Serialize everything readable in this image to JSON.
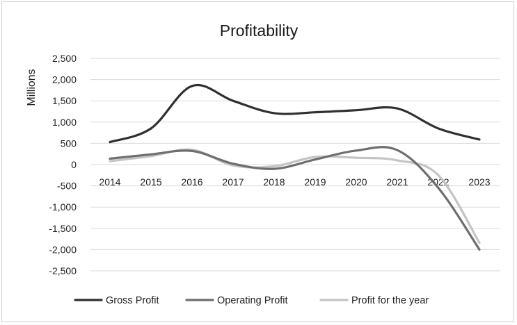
{
  "chart_data": {
    "type": "line",
    "title": "Profitability",
    "xlabel": "",
    "ylabel": "Millions",
    "categories": [
      "2014",
      "2015",
      "2016",
      "2017",
      "2018",
      "2019",
      "2020",
      "2021",
      "2022",
      "2023"
    ],
    "ylim": [
      -2500,
      2500
    ],
    "yticks": [
      2500,
      2000,
      1500,
      1000,
      500,
      0,
      -500,
      -1000,
      -1500,
      -2000,
      -2500
    ],
    "ytick_labels": [
      "2,500",
      "2,000",
      "1,500",
      "1,000",
      "500",
      "0",
      "-500",
      "-1,000",
      "-1,500",
      "-2,000",
      "-2,500"
    ],
    "grid": true,
    "legend_position": "bottom",
    "series": [
      {
        "name": "Gross Profit",
        "color": "#303030",
        "values": [
          530,
          850,
          1850,
          1500,
          1210,
          1230,
          1280,
          1320,
          850,
          590
        ]
      },
      {
        "name": "Operating Profit",
        "color": "#6e6e6e",
        "values": [
          140,
          240,
          320,
          20,
          -100,
          120,
          330,
          340,
          -550,
          -2000
        ]
      },
      {
        "name": "Profit for the year",
        "color": "#c4c4c4",
        "values": [
          80,
          200,
          350,
          -20,
          -40,
          180,
          160,
          100,
          -250,
          -1840
        ]
      }
    ]
  }
}
